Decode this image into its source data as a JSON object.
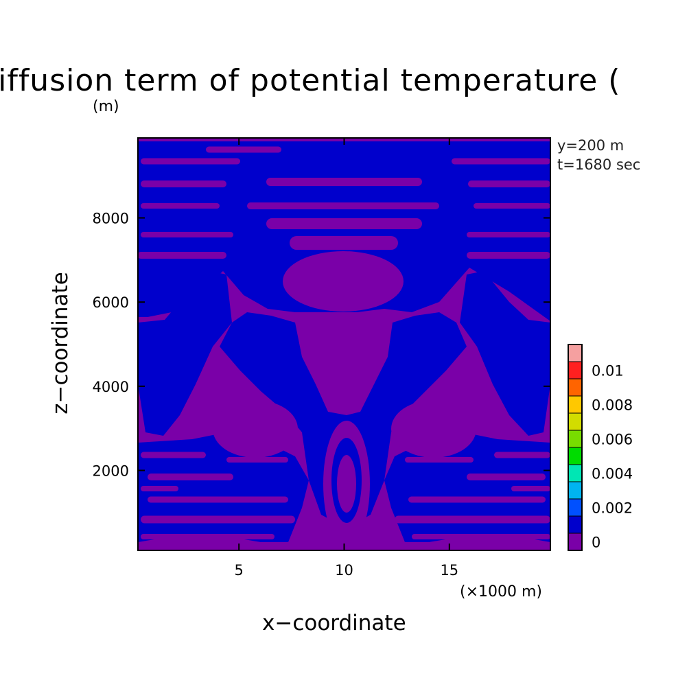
{
  "chart_data": {
    "type": "heatmap",
    "title": "al diffusion term of potential temperature (",
    "title_unit": "(m)",
    "annotations": [
      "y=200 m",
      "t=1680 sec"
    ],
    "xlabel": "x−coordinate",
    "x_unit": "(×1000 m)",
    "ylabel": "z−coordinate",
    "xlim": [
      0.2,
      19.8
    ],
    "ylim": [
      100,
      9900
    ],
    "x_ticks": [
      5,
      10,
      15
    ],
    "x_tick_labels": [
      "5",
      "10",
      "15"
    ],
    "y_ticks": [
      2000,
      4000,
      6000,
      8000
    ],
    "y_tick_labels": [
      "2000",
      "4000",
      "6000",
      "8000"
    ],
    "colorbar": {
      "levels": [
        0,
        0.001,
        0.002,
        0.003,
        0.004,
        0.005,
        0.006,
        0.007,
        0.008,
        0.009,
        0.01,
        0.011
      ],
      "labels": [
        "0",
        "0.002",
        "0.004",
        "0.006",
        "0.008",
        "0.01"
      ],
      "colors": [
        "#7a00a8",
        "#0000cc",
        "#0050ff",
        "#00b4f0",
        "#00e6b4",
        "#00dc00",
        "#78dc00",
        "#d2dc00",
        "#ffc800",
        "#ff6400",
        "#ff2020",
        "#f5a0a0"
      ]
    },
    "field_colors": {
      "background": "#7a00a8",
      "contour": "#0000cc"
    },
    "grid": false
  }
}
